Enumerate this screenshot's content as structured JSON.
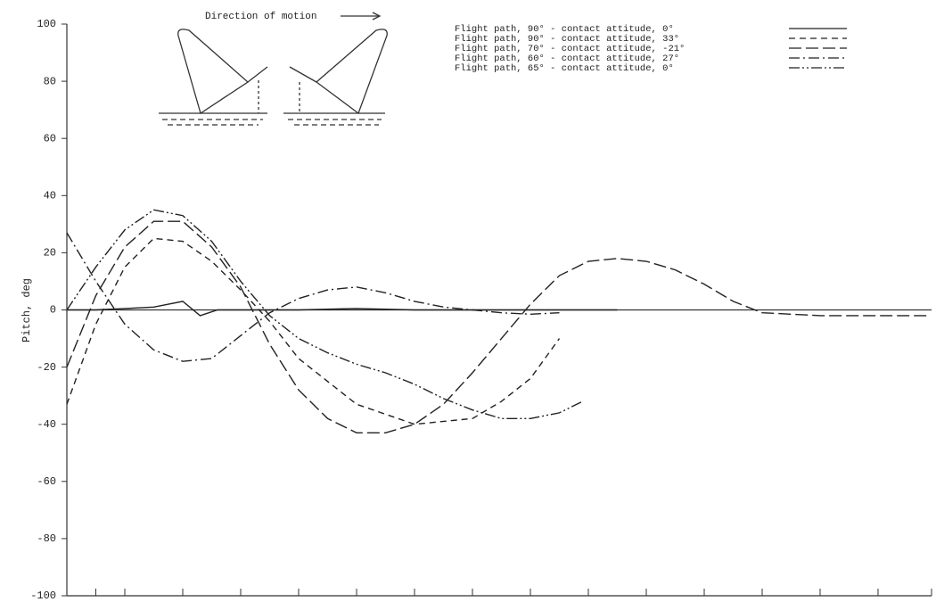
{
  "chart_data": {
    "type": "line",
    "y_label": "Pitch, deg",
    "annotation": "Direction of motion",
    "ylim": [
      -100,
      100
    ],
    "yticks": [
      -100,
      -80,
      -60,
      -40,
      -20,
      0,
      20,
      40,
      60,
      80,
      100
    ],
    "xlim": [
      0,
      15
    ],
    "xticks": [
      0.5,
      1,
      2,
      3,
      4,
      5,
      6,
      7,
      8,
      9,
      10,
      11,
      12,
      13,
      14,
      15
    ],
    "series": [
      {
        "name": "Flight path, 90° - contact attitude, 0°",
        "color": "#222",
        "dash": "none",
        "x": [
          0,
          0.5,
          1,
          1.5,
          2,
          2.3,
          2.6,
          3,
          4,
          5,
          6,
          7,
          8,
          9,
          9.5
        ],
        "values": [
          0,
          0,
          0.5,
          1,
          3,
          -2,
          0,
          0,
          0,
          0.5,
          0,
          0,
          0,
          0,
          0
        ]
      },
      {
        "name": "Flight path, 90° - contact attitude, 33°",
        "color": "#222",
        "dash": "7 5",
        "x": [
          0,
          0.5,
          1,
          1.5,
          2,
          2.5,
          3,
          3.5,
          4,
          5,
          6,
          7,
          7.5,
          8,
          8.5
        ],
        "values": [
          -33,
          -5,
          15,
          25,
          24,
          17,
          7,
          -4,
          -17,
          -33,
          -40,
          -38,
          -32,
          -24,
          -10
        ]
      },
      {
        "name": "Flight path, 70° - contact attitude, -21°",
        "color": "#222",
        "dash": "14 5",
        "x": [
          0,
          0.5,
          1,
          1.5,
          2,
          2.5,
          3,
          3.5,
          4,
          4.5,
          5,
          5.5,
          6,
          6.5,
          7,
          7.5,
          8,
          8.5,
          9,
          9.5,
          10,
          10.5,
          11,
          11.5,
          12,
          13,
          14,
          14.9
        ],
        "values": [
          -20,
          5,
          22,
          31,
          31,
          22,
          8,
          -12,
          -28,
          -38,
          -43,
          -43,
          -40,
          -33,
          -22,
          -10,
          2,
          12,
          17,
          18,
          17,
          14,
          9,
          3,
          -1,
          -2,
          -2,
          -2
        ]
      },
      {
        "name": "Flight path, 60° - contact attitude, 27°",
        "color": "#222",
        "dash": "12 4 2 4",
        "x": [
          0,
          0.5,
          1,
          1.5,
          2,
          2.5,
          3,
          3.5,
          4,
          4.5,
          5,
          5.5,
          6,
          6.5,
          7,
          7.5,
          8,
          8.5
        ],
        "values": [
          27,
          10,
          -5,
          -14,
          -18,
          -17,
          -9,
          -1,
          4,
          7,
          8,
          6,
          3,
          1,
          0,
          -1,
          -1.5,
          -1
        ]
      },
      {
        "name": "Flight path, 65° - contact attitude, 0°",
        "color": "#222",
        "dash": "12 3 2 3 2 3",
        "x": [
          0,
          0.5,
          1,
          1.5,
          2,
          2.5,
          3,
          3.5,
          4,
          4.5,
          5,
          5.5,
          6,
          6.5,
          7,
          7.5,
          8,
          8.5,
          8.9
        ],
        "values": [
          0,
          15,
          28,
          35,
          33,
          24,
          10,
          -2,
          -10,
          -15,
          -19,
          -22,
          -26,
          -31,
          -35,
          -38,
          -38,
          -36,
          -32
        ]
      }
    ]
  }
}
